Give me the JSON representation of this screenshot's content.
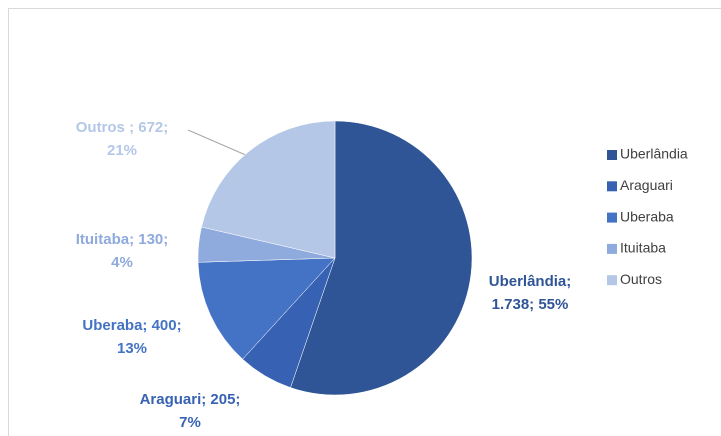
{
  "chart_data": {
    "type": "pie",
    "categories": [
      "Uberlândia",
      "Araguari",
      "Uberaba",
      "Ituitaba",
      "Outros"
    ],
    "values": [
      1738,
      205,
      400,
      130,
      672
    ],
    "colors": [
      "#2f5597",
      "#3762b3",
      "#4472c4",
      "#8faadc",
      "#b4c7e7"
    ],
    "data_labels": [
      [
        "Uberlândia;",
        "1.738; 55%"
      ],
      [
        "Araguari; 205;",
        "7%"
      ],
      [
        "Uberaba; 400;",
        "13%"
      ],
      [
        "Ituitaba; 130;",
        "4%"
      ],
      [
        "Outros ; 672;",
        "21%"
      ]
    ],
    "legend": "right"
  }
}
